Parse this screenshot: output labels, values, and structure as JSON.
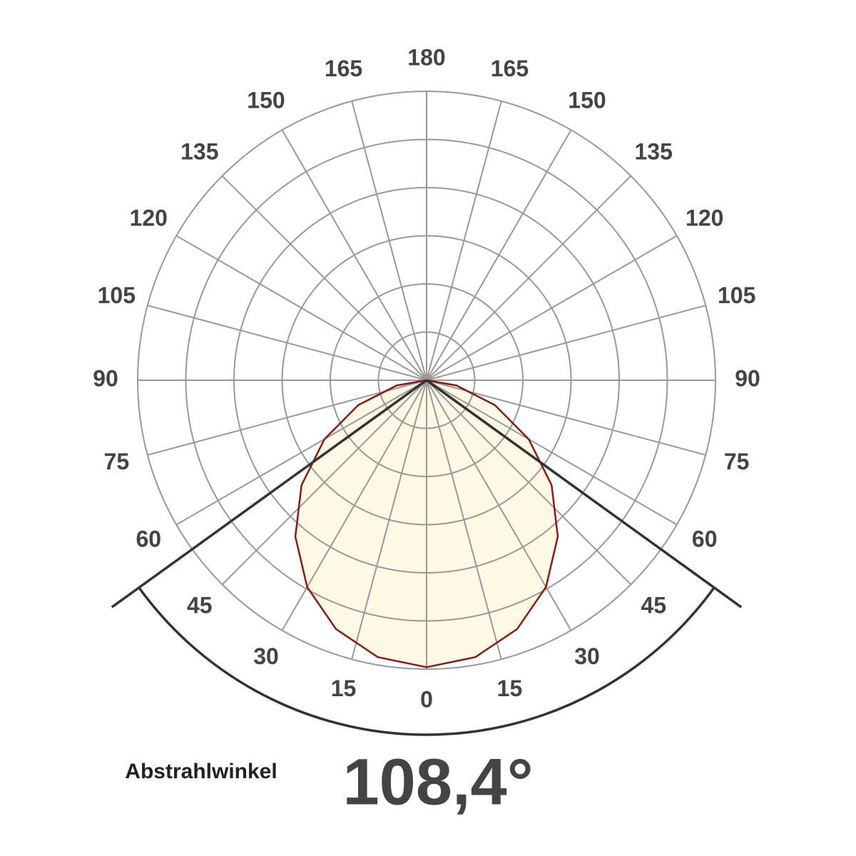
{
  "chart_data": {
    "type": "polar",
    "angle_ticks": [
      0,
      15,
      30,
      45,
      60,
      75,
      90,
      105,
      120,
      135,
      150,
      165,
      180
    ],
    "rlim": [
      0,
      6
    ],
    "rticks": [
      1,
      2,
      3,
      4,
      5,
      6
    ],
    "symmetric": true,
    "angles": [
      0,
      10,
      20,
      30,
      40,
      50,
      60,
      70,
      80,
      90
    ],
    "values": [
      5.96,
      5.84,
      5.5,
      4.96,
      4.24,
      3.39,
      2.45,
      1.51,
      0.63,
      0
    ],
    "color": "#8b1a1a",
    "fill": "#fdf9e4",
    "grid_color": "#999999",
    "beam_angle": 108.4,
    "beam_label": "Abstrahlwinkel",
    "beam_value_label": "108,4°"
  }
}
